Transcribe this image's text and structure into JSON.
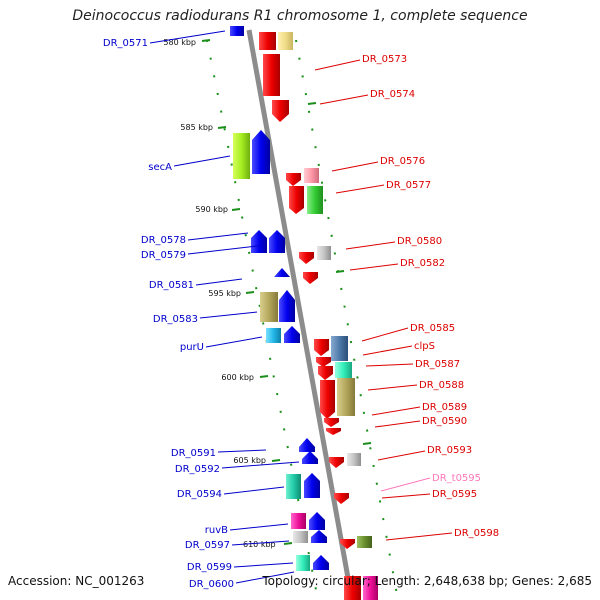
{
  "title": "Deinococcus radiodurans R1 chromosome 1, complete sequence",
  "footer": {
    "accession": "Accession: NC_001263",
    "summary": "Topology: circular; Length: 2,648,638 bp; Genes: 2,685"
  },
  "colors": {
    "backbone": "#8c8c8c",
    "forward_label": "#dd0000",
    "reverse_label": "#0000cc",
    "trna_label": "#ff77bb",
    "ruler_ticks": "#1a8f1a"
  },
  "ruler_marks": [
    "580 kbp",
    "585 kbp",
    "590 kbp",
    "595 kbp",
    "600 kbp",
    "605 kbp",
    "610 kbp"
  ],
  "left_labels": [
    "DR_0571",
    "secA",
    "DR_0578",
    "DR_0579",
    "DR_0581",
    "DR_0583",
    "purU",
    "DR_0591",
    "DR_0592",
    "DR_0594",
    "ruvB",
    "DR_0597",
    "DR_0599",
    "DR_0600"
  ],
  "right_labels": [
    "DR_0573",
    "DR_0574",
    "DR_0576",
    "DR_0577",
    "DR_0580",
    "DR_0582",
    "DR_0585",
    "clpS",
    "DR_0587",
    "DR_0588",
    "DR_0589",
    "DR_0590",
    "DR_0593",
    "DR_t0595",
    "DR_0595",
    "DR_0598"
  ]
}
